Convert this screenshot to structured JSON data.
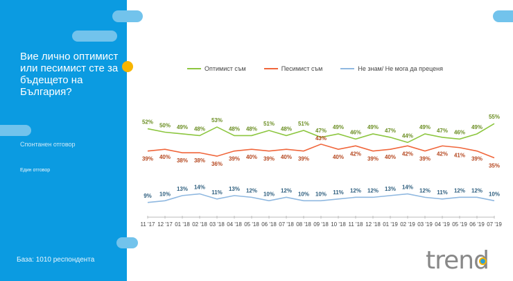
{
  "sidebar": {
    "question": "Вие лично оптимист или песимист сте за бъдещето на България?",
    "note1": "Спонтанен отговор",
    "note2": "Един отговор",
    "base": "База: 1010 респондента"
  },
  "logo": "trend",
  "chart_data": {
    "type": "line",
    "categories": [
      "11 '17",
      "12 '17",
      "01 '18",
      "02 '18",
      "03 '18",
      "04 '18",
      "05 '18",
      "06 '18",
      "07 '18",
      "08 '18",
      "09 '18",
      "10 '18",
      "11 '18",
      "12 '18",
      "01 '19",
      "02 '19",
      "03 '19",
      "04 '19",
      "05 '19",
      "06 '19",
      "07 '19"
    ],
    "series": [
      {
        "name": "Оптимист съм",
        "color": "#8cc63f",
        "label_color": "#6b8e23",
        "values": [
          52,
          50,
          49,
          48,
          53,
          48,
          48,
          51,
          48,
          51,
          47,
          49,
          46,
          49,
          47,
          44,
          49,
          47,
          46,
          49,
          55
        ]
      },
      {
        "name": "Песимист съм",
        "color": "#f0653a",
        "label_color": "#b5471f",
        "values": [
          39,
          40,
          38,
          38,
          36,
          39,
          40,
          39,
          40,
          39,
          43,
          40,
          42,
          39,
          40,
          42,
          39,
          42,
          41,
          39,
          35
        ]
      },
      {
        "name": "Не знам/ Не мога да преценя",
        "color": "#8fb8e0",
        "label_color": "#2f5f7f",
        "values": [
          9,
          10,
          13,
          14,
          11,
          13,
          12,
          10,
          12,
          10,
          10,
          11,
          12,
          12,
          13,
          14,
          12,
          11,
          12,
          12,
          10
        ]
      }
    ],
    "value_suffix": "%",
    "legend": "top",
    "grid": false
  }
}
